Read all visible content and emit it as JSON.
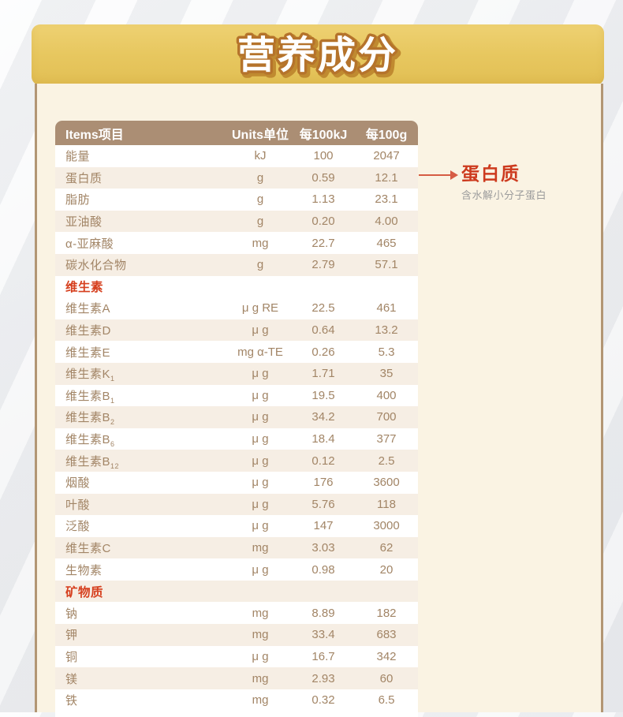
{
  "page": {
    "title": "营养成分"
  },
  "colors": {
    "banner_gold": "#e7c75f",
    "banner_title_stroke": "#b5732b",
    "panel_bg": "#faf3e3",
    "panel_border": "#b29674",
    "table_header_bg": "#ab8e74",
    "row_text": "#a28566",
    "row_shaded_bg": "#f6eee4",
    "section_red": "#d6401f",
    "callout_red": "#cd3a1e",
    "callout_arrow": "#d65c44",
    "callout_gray": "#9c9c9c"
  },
  "table": {
    "headers": [
      "Items项目",
      "Units单位",
      "每100kJ",
      "每100g"
    ],
    "rows": [
      {
        "label": "能量",
        "unit": "kJ",
        "per100kj": "100",
        "per100g": "2047",
        "shaded": false
      },
      {
        "label": "蛋白质",
        "unit": "g",
        "per100kj": "0.59",
        "per100g": "12.1",
        "shaded": true
      },
      {
        "label": "脂肪",
        "unit": "g",
        "per100kj": "1.13",
        "per100g": "23.1",
        "shaded": false
      },
      {
        "label": "亚油酸",
        "unit": "g",
        "per100kj": "0.20",
        "per100g": "4.00",
        "shaded": true
      },
      {
        "label": "α-亚麻酸",
        "unit": "mg",
        "per100kj": "22.7",
        "per100g": "465",
        "shaded": false
      },
      {
        "label": "碳水化合物",
        "unit": "g",
        "per100kj": "2.79",
        "per100g": "57.1",
        "shaded": true
      },
      {
        "label": "维生素",
        "section": true,
        "shaded": false
      },
      {
        "label": "维生素A",
        "unit": "μ g RE",
        "per100kj": "22.5",
        "per100g": "461",
        "shaded": false
      },
      {
        "label": "维生素D",
        "unit": "μ g",
        "per100kj": "0.64",
        "per100g": "13.2",
        "shaded": true
      },
      {
        "label": "维生素E",
        "unit": "mg α-TE",
        "per100kj": "0.26",
        "per100g": "5.3",
        "shaded": false
      },
      {
        "label": "维生素K",
        "sub": "1",
        "unit": "μ g",
        "per100kj": "1.71",
        "per100g": "35",
        "shaded": true
      },
      {
        "label": "维生素B",
        "sub": "1",
        "unit": "μ g",
        "per100kj": "19.5",
        "per100g": "400",
        "shaded": false
      },
      {
        "label": "维生素B",
        "sub": "2",
        "unit": "μ g",
        "per100kj": "34.2",
        "per100g": "700",
        "shaded": true
      },
      {
        "label": "维生素B",
        "sub": "6",
        "unit": "μ g",
        "per100kj": "18.4",
        "per100g": "377",
        "shaded": false
      },
      {
        "label": "维生素B",
        "sub": "12",
        "unit": "μ g",
        "per100kj": "0.12",
        "per100g": "2.5",
        "shaded": true
      },
      {
        "label": "烟酸",
        "unit": "μ g",
        "per100kj": "176",
        "per100g": "3600",
        "shaded": false
      },
      {
        "label": "叶酸",
        "unit": "μ g",
        "per100kj": "5.76",
        "per100g": "118",
        "shaded": true
      },
      {
        "label": "泛酸",
        "unit": "μ g",
        "per100kj": "147",
        "per100g": "3000",
        "shaded": false
      },
      {
        "label": "维生素C",
        "unit": "mg",
        "per100kj": "3.03",
        "per100g": "62",
        "shaded": true
      },
      {
        "label": "生物素",
        "unit": "μ g",
        "per100kj": "0.98",
        "per100g": "20",
        "shaded": false
      },
      {
        "label": "矿物质",
        "section": true,
        "shaded": true
      },
      {
        "label": "钠",
        "unit": "mg",
        "per100kj": "8.89",
        "per100g": "182",
        "shaded": false
      },
      {
        "label": "钾",
        "unit": "mg",
        "per100kj": "33.4",
        "per100g": "683",
        "shaded": true
      },
      {
        "label": "铜",
        "unit": "μ g",
        "per100kj": "16.7",
        "per100g": "342",
        "shaded": false
      },
      {
        "label": "镁",
        "unit": "mg",
        "per100kj": "2.93",
        "per100g": "60",
        "shaded": true
      },
      {
        "label": "铁",
        "unit": "mg",
        "per100kj": "0.32",
        "per100g": "6.5",
        "shaded": false
      }
    ]
  },
  "annotation": {
    "title": "蛋白质",
    "subtitle": "含水解小分子蛋白"
  }
}
